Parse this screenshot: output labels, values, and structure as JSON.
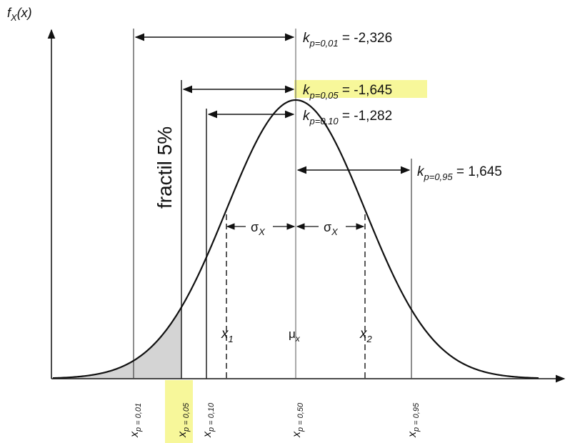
{
  "highlight_color": "#f7f79a",
  "shade_color": "#d4d4d4",
  "y_axis_label": {
    "main": "f",
    "sub": "X",
    "tail": "(x)"
  },
  "k_labels": {
    "k001": {
      "main": "k",
      "sub": "p=0,01",
      "value": " = -2,326"
    },
    "k005": {
      "main": "k",
      "sub": "p=0,05",
      "value": " = -1,645"
    },
    "k010": {
      "main": "k",
      "sub": "p=0,10",
      "value": " = -1,282"
    },
    "k095": {
      "main": "k",
      "sub": "p=0,95",
      "value": " = 1,645"
    }
  },
  "fractile_label": "fractil 5%",
  "sigma": {
    "main": "σ",
    "sub": "X"
  },
  "mean_label": {
    "main": "μ",
    "sub": "x"
  },
  "x1_label": {
    "main": "x",
    "sub": "1"
  },
  "x2_label": {
    "main": "x",
    "sub": "2"
  },
  "quantiles": [
    {
      "main": "x",
      "sub": "p = 0,01"
    },
    {
      "main": "x",
      "sub": "p = 0,05"
    },
    {
      "main": "x",
      "sub": "p = 0,10"
    },
    {
      "main": "x",
      "sub": "p = 0,50"
    },
    {
      "main": "x",
      "sub": "p = 0,95"
    }
  ]
}
